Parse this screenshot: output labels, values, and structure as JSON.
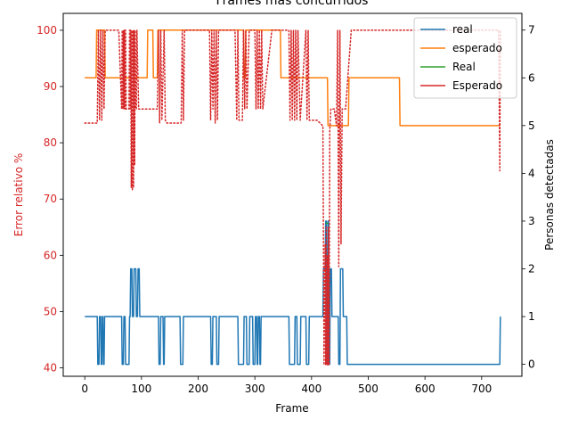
{
  "colors": {
    "blue": "#1f77b4",
    "orange": "#ff7f0e",
    "green": "#2ca02c",
    "red": "#d62728"
  },
  "chart_data": {
    "type": "line",
    "title": "Frames más concurridos",
    "xlabel": "Frame",
    "ylabel_left": "Error relativo %",
    "ylabel_right": "Personas detectadas",
    "xlim": [
      -38,
      771
    ],
    "ylim_left": [
      38.5,
      103.0
    ],
    "ylim_right": [
      -0.25,
      7.35
    ],
    "x_ticks": [
      0,
      100,
      200,
      300,
      400,
      500,
      600,
      700
    ],
    "y_ticks_left": [
      40,
      50,
      60,
      70,
      80,
      90,
      100
    ],
    "y_ticks_right": [
      0,
      1,
      2,
      3,
      4,
      5,
      6,
      7
    ],
    "legend": {
      "position": "top-right",
      "entries": [
        {
          "label": "real",
          "color": "#1f77b4"
        },
        {
          "label": "esperado",
          "color": "#ff7f0e"
        },
        {
          "label": "Real",
          "color": "#2ca02c"
        },
        {
          "label": "Esperado",
          "color": "#d62728"
        }
      ]
    },
    "series": [
      {
        "name": "real",
        "axis": "right",
        "style": "solid",
        "color": "#1f77b4",
        "x": [
          0,
          22,
          23,
          25,
          26,
          28,
          29,
          30,
          31,
          32,
          33,
          34,
          35,
          36,
          65,
          66,
          68,
          69,
          71,
          72,
          78,
          79,
          80,
          81,
          83,
          84,
          86,
          87,
          90,
          91,
          93,
          94,
          96,
          97,
          130,
          131,
          133,
          134,
          138,
          139,
          140,
          141,
          142,
          143,
          168,
          169,
          173,
          174,
          222,
          223,
          225,
          226,
          232,
          233,
          236,
          237,
          270,
          271,
          280,
          281,
          285,
          286,
          290,
          291,
          296,
          297,
          300,
          301,
          303,
          304,
          305,
          306,
          308,
          309,
          310,
          311,
          312,
          313,
          360,
          361,
          370,
          371,
          374,
          375,
          380,
          381,
          390,
          391,
          395,
          396,
          420,
          421,
          424,
          425,
          426,
          427,
          428,
          429,
          430,
          431,
          432,
          433,
          435,
          436,
          447,
          448,
          450,
          451,
          455,
          456,
          462,
          463,
          732,
          733
        ],
        "y": [
          1,
          1,
          0,
          0,
          1,
          1,
          0,
          0,
          1,
          1,
          0,
          0,
          1,
          1,
          1,
          0,
          0,
          1,
          1,
          0,
          0,
          1,
          1,
          2,
          2,
          1,
          1,
          2,
          2,
          1,
          1,
          2,
          2,
          1,
          1,
          0,
          0,
          1,
          1,
          0,
          0,
          1,
          1,
          1,
          1,
          0,
          0,
          1,
          1,
          0,
          0,
          1,
          1,
          0,
          0,
          1,
          1,
          0,
          0,
          1,
          1,
          0,
          0,
          1,
          1,
          0,
          0,
          1,
          1,
          0,
          0,
          1,
          1,
          0,
          0,
          1,
          1,
          1,
          1,
          0,
          0,
          1,
          1,
          0,
          0,
          1,
          1,
          0,
          0,
          1,
          1,
          2,
          2,
          3,
          3,
          0,
          0,
          3,
          3,
          0,
          0,
          2,
          2,
          1,
          1,
          0,
          0,
          2,
          2,
          1,
          1,
          0,
          0,
          1
        ]
      },
      {
        "name": "esperado",
        "axis": "right",
        "style": "solid",
        "color": "#ff7f0e",
        "x": [
          0,
          20,
          21,
          35,
          36,
          110,
          111,
          120,
          121,
          128,
          129,
          280,
          281,
          283,
          284,
          345,
          346,
          428,
          429,
          465,
          466,
          555,
          556,
          732
        ],
        "y": [
          6,
          6,
          7,
          7,
          6,
          6,
          7,
          7,
          6,
          6,
          7,
          7,
          6,
          6,
          7,
          7,
          6,
          6,
          5,
          5,
          6,
          6,
          5,
          5
        ]
      },
      {
        "name": "Real",
        "axis": "left",
        "style": "solid",
        "color": "#2ca02c",
        "x": [
          425,
          427,
          428,
          429
        ],
        "y": [
          65.7,
          65.7,
          65.7,
          65.7
        ]
      },
      {
        "name": "Esperado",
        "axis": "left",
        "style": "dotted",
        "color": "#d62728",
        "x": [
          0,
          22,
          24,
          26,
          28,
          30,
          32,
          34,
          36,
          60,
          65,
          66,
          67,
          68,
          69,
          70,
          71,
          72,
          73,
          78,
          79,
          80,
          81,
          82,
          83,
          84,
          85,
          86,
          87,
          88,
          89,
          90,
          91,
          92,
          95,
          100,
          128,
          130,
          132,
          134,
          136,
          140,
          142,
          145,
          160,
          170,
          172,
          174,
          176,
          220,
          222,
          224,
          226,
          228,
          230,
          232,
          234,
          236,
          240,
          265,
          268,
          270,
          272,
          278,
          280,
          282,
          284,
          286,
          290,
          300,
          302,
          304,
          306,
          308,
          310,
          312,
          314,
          330,
          360,
          362,
          364,
          366,
          368,
          370,
          372,
          374,
          376,
          380,
          390,
          392,
          394,
          396,
          410,
          420,
          422,
          424,
          425,
          426,
          427,
          428,
          429,
          430,
          431,
          432,
          434,
          440,
          444,
          446,
          448,
          450,
          452,
          454,
          460,
          470,
          480,
          600,
          720,
          730,
          732,
          733
        ],
        "y": [
          83.5,
          83.5,
          100,
          84,
          100,
          84,
          100,
          86,
          100,
          100,
          86,
          100,
          86,
          100,
          86,
          100,
          86,
          100,
          86,
          86,
          100,
          86,
          100,
          72,
          100,
          71.5,
          100,
          72,
          100,
          76,
          100,
          86,
          86,
          100,
          86,
          86,
          86,
          100,
          83.5,
          100,
          84,
          100,
          84,
          83.5,
          83.5,
          83.5,
          100,
          84,
          100,
          100,
          84,
          100,
          86,
          100,
          83.5,
          100,
          84,
          100,
          100,
          100,
          84,
          100,
          84,
          84,
          100,
          86,
          100,
          86,
          100,
          100,
          86,
          100,
          86,
          100,
          86,
          100,
          86,
          100,
          100,
          84,
          100,
          84,
          100,
          84,
          100,
          84,
          100,
          84,
          100,
          84,
          100,
          84,
          84,
          83,
          40.5,
          62,
          40.5,
          65,
          40.5,
          60,
          40.5,
          65,
          40.5,
          82,
          86,
          86,
          83,
          100,
          58,
          100,
          62,
          86,
          86,
          100,
          100,
          100,
          100,
          100,
          75,
          100
        ]
      }
    ]
  }
}
